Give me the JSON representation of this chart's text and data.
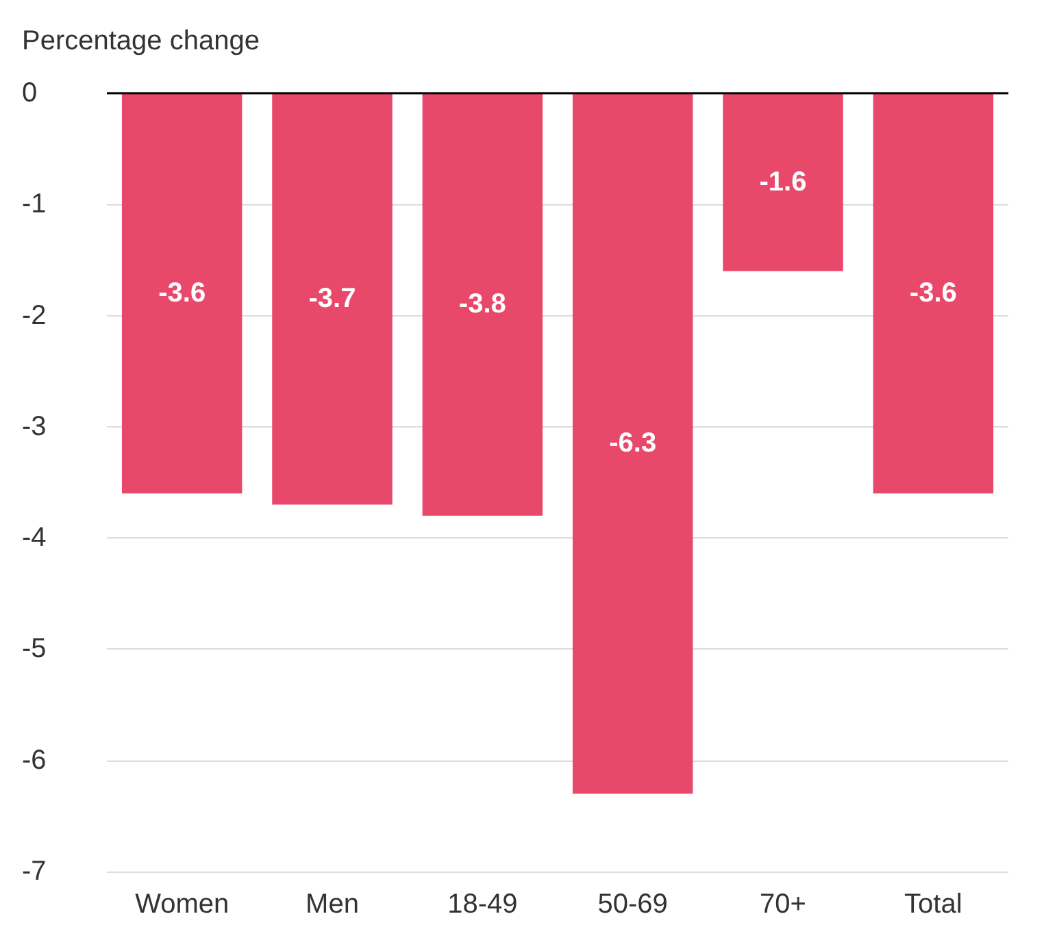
{
  "chart_data": {
    "type": "bar",
    "ylabel": "Percentage change",
    "categories": [
      "Women",
      "Men",
      "18-49",
      "50-69",
      "70+",
      "Total"
    ],
    "values": [
      -3.6,
      -3.7,
      -3.8,
      -6.3,
      -1.6,
      -3.6
    ],
    "color": "#e8496b",
    "ylim": [
      -7,
      0
    ],
    "yticks": [
      0,
      -1,
      -2,
      -3,
      -4,
      -5,
      -6,
      -7
    ],
    "grid": "y",
    "data_labels": true
  }
}
